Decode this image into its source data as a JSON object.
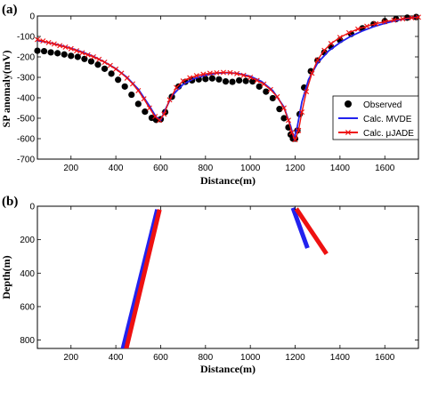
{
  "colors": {
    "observed": "#000000",
    "mvde": "#2222ee",
    "jade": "#ee1111",
    "axis": "#000000"
  },
  "chart_data": [
    {
      "type": "scatter",
      "panel_label": "(a)",
      "xlabel": "Distance(m)",
      "ylabel": "SP anomaly(mV)",
      "xlim": [
        50,
        1750
      ],
      "ylim": [
        -700,
        0
      ],
      "xticks": [
        200,
        400,
        600,
        800,
        1000,
        1200,
        1400,
        1600
      ],
      "yticks": [
        0,
        -100,
        -200,
        -300,
        -400,
        -500,
        -600,
        -700
      ],
      "legend_position": "bottom-right",
      "series": [
        {
          "name": "Observed",
          "marker": "filled-circle",
          "x": [
            50,
            80,
            110,
            140,
            170,
            200,
            230,
            260,
            290,
            320,
            350,
            380,
            410,
            440,
            470,
            500,
            530,
            560,
            580,
            600,
            620,
            650,
            680,
            710,
            740,
            770,
            800,
            830,
            860,
            890,
            920,
            950,
            980,
            1010,
            1040,
            1070,
            1100,
            1130,
            1150,
            1170,
            1180,
            1190,
            1200,
            1210,
            1220,
            1240,
            1270,
            1300,
            1330,
            1360,
            1400,
            1450,
            1500,
            1550,
            1600,
            1650,
            1700,
            1740
          ],
          "y": [
            -170,
            -172,
            -178,
            -182,
            -188,
            -195,
            -200,
            -210,
            -222,
            -238,
            -258,
            -282,
            -312,
            -345,
            -385,
            -430,
            -468,
            -498,
            -508,
            -505,
            -470,
            -395,
            -345,
            -322,
            -315,
            -310,
            -308,
            -305,
            -310,
            -320,
            -322,
            -315,
            -318,
            -320,
            -345,
            -370,
            -402,
            -455,
            -500,
            -545,
            -580,
            -600,
            -600,
            -560,
            -480,
            -350,
            -270,
            -218,
            -178,
            -150,
            -118,
            -88,
            -60,
            -40,
            -25,
            -15,
            -8,
            -5
          ]
        },
        {
          "name": "Calc. MVDE",
          "marker": "line",
          "x": [
            50,
            100,
            150,
            200,
            250,
            300,
            350,
            400,
            450,
            500,
            550,
            580,
            600,
            620,
            650,
            700,
            750,
            800,
            850,
            900,
            950,
            1000,
            1050,
            1100,
            1150,
            1180,
            1195,
            1210,
            1230,
            1260,
            1300,
            1350,
            1400,
            1450,
            1500,
            1550,
            1600,
            1650,
            1700,
            1750
          ],
          "y": [
            -120,
            -130,
            -143,
            -158,
            -176,
            -198,
            -225,
            -258,
            -300,
            -358,
            -440,
            -495,
            -510,
            -460,
            -390,
            -335,
            -305,
            -290,
            -280,
            -277,
            -282,
            -295,
            -320,
            -365,
            -445,
            -540,
            -600,
            -540,
            -420,
            -310,
            -230,
            -170,
            -130,
            -98,
            -73,
            -52,
            -36,
            -22,
            -12,
            -5
          ]
        },
        {
          "name": "Calc. μJADE",
          "marker": "line-x",
          "x": [
            50,
            75,
            100,
            125,
            150,
            175,
            200,
            225,
            250,
            275,
            300,
            325,
            350,
            375,
            400,
            425,
            450,
            475,
            500,
            525,
            550,
            575,
            595,
            615,
            640,
            670,
            700,
            730,
            760,
            790,
            820,
            850,
            880,
            910,
            940,
            970,
            1000,
            1030,
            1060,
            1090,
            1120,
            1150,
            1170,
            1185,
            1200,
            1215,
            1230,
            1250,
            1275,
            1300,
            1330,
            1360,
            1400,
            1440,
            1480,
            1520,
            1560,
            1600,
            1640,
            1680,
            1720,
            1750
          ],
          "y": [
            -115,
            -122,
            -130,
            -137,
            -145,
            -152,
            -160,
            -170,
            -180,
            -190,
            -200,
            -212,
            -226,
            -242,
            -260,
            -280,
            -304,
            -332,
            -365,
            -405,
            -450,
            -492,
            -510,
            -480,
            -410,
            -350,
            -318,
            -302,
            -292,
            -285,
            -280,
            -278,
            -276,
            -277,
            -282,
            -290,
            -300,
            -315,
            -333,
            -360,
            -395,
            -450,
            -510,
            -570,
            -605,
            -560,
            -470,
            -370,
            -280,
            -215,
            -168,
            -135,
            -105,
            -82,
            -64,
            -50,
            -38,
            -28,
            -20,
            -14,
            -9,
            -6
          ]
        }
      ]
    },
    {
      "type": "line",
      "panel_label": "(b)",
      "xlabel": "Distance(m)",
      "ylabel": "Depth(m)",
      "xlim": [
        50,
        1750
      ],
      "ylim": [
        850,
        0
      ],
      "xticks": [
        200,
        400,
        600,
        800,
        1000,
        1200,
        1400,
        1600
      ],
      "yticks": [
        0,
        200,
        400,
        600,
        800
      ],
      "series": [
        {
          "name": "Calc. MVDE",
          "x": [
            585,
            430
          ],
          "y": [
            20,
            860
          ]
        },
        {
          "name": "Calc. μJADE",
          "x": [
            595,
            445
          ],
          "y": [
            20,
            860
          ]
        },
        {
          "name": "Calc. MVDE",
          "x": [
            1190,
            1255
          ],
          "y": [
            10,
            250
          ]
        },
        {
          "name": "Calc. μJADE",
          "x": [
            1205,
            1340
          ],
          "y": [
            15,
            285
          ]
        }
      ]
    }
  ]
}
